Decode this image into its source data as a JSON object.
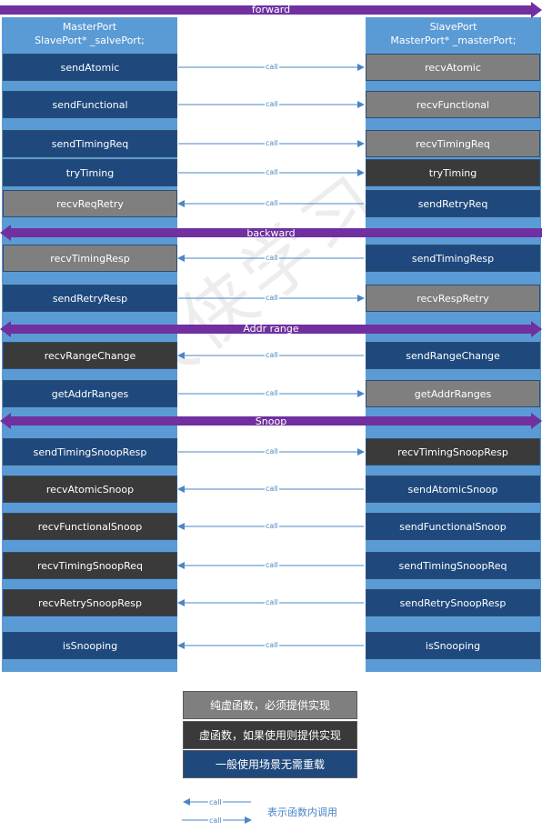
{
  "bands": {
    "forward": "forward",
    "backward": "backward",
    "addr_range": "Addr range",
    "snoop": "Snoop"
  },
  "left_header": [
    "MasterPort",
    "SlavePort* _salvePort;"
  ],
  "right_header": [
    "SlavePort",
    "MasterPort* _masterPort;"
  ],
  "call_label": "call",
  "rows": [
    {
      "left": "sendAtomic",
      "left_style": "navy",
      "right": "recvAtomic",
      "right_style": "gray",
      "direction": "right"
    },
    {
      "left": "sendFunctional",
      "left_style": "navy",
      "right": "recvFunctional",
      "right_style": "gray",
      "direction": "right"
    },
    {
      "left": "sendTimingReq",
      "left_style": "navy",
      "right": "recvTimingReq",
      "right_style": "gray",
      "direction": "right"
    },
    {
      "left": "tryTiming",
      "left_style": "navy",
      "right": "tryTiming",
      "right_style": "dark",
      "direction": "right"
    },
    {
      "left": "recvReqRetry",
      "left_style": "gray",
      "right": "sendRetryReq",
      "right_style": "navy",
      "direction": "left"
    },
    {
      "left": "recvTimingResp",
      "left_style": "gray",
      "right": "sendTimingResp",
      "right_style": "navy",
      "direction": "left"
    },
    {
      "left": "sendRetryResp",
      "left_style": "navy",
      "right": "recvRespRetry",
      "right_style": "gray",
      "direction": "right"
    },
    {
      "left": "recvRangeChange",
      "left_style": "dark",
      "right": "sendRangeChange",
      "right_style": "navy",
      "direction": "left"
    },
    {
      "left": "getAddrRanges",
      "left_style": "navy",
      "right": "getAddrRanges",
      "right_style": "gray",
      "direction": "right"
    },
    {
      "left": "sendTimingSnoopResp",
      "left_style": "navy",
      "right": "recvTimingSnoopResp",
      "right_style": "dark",
      "direction": "right"
    },
    {
      "left": "recvAtomicSnoop",
      "left_style": "dark",
      "right": "sendAtomicSnoop",
      "right_style": "navy",
      "direction": "left"
    },
    {
      "left": "recvFunctionalSnoop",
      "left_style": "dark",
      "right": "sendFunctionalSnoop",
      "right_style": "navy",
      "direction": "left"
    },
    {
      "left": "recvTimingSnoopReq",
      "left_style": "dark",
      "right": "sendTimingSnoopReq",
      "right_style": "navy",
      "direction": "left"
    },
    {
      "left": "recvRetrySnoopResp",
      "left_style": "dark",
      "right": "sendRetrySnoopResp",
      "right_style": "navy",
      "direction": "left"
    },
    {
      "left": "isSnooping",
      "left_style": "navy",
      "right": "isSnooping",
      "right_style": "navy",
      "direction": "left"
    }
  ],
  "legend": {
    "pure_virtual": "纯虚函数，必须提供实现",
    "virtual": "虚函数，如果使用则提供实现",
    "no_overload": "一般使用场景无需重载",
    "call_note": "表示函数内调用"
  },
  "watermark": "郭大侠学习",
  "colors": {
    "column_blue": "#5b9bd5",
    "navy": "#1f497d",
    "gray": "#7f7f7f",
    "dark": "#3a3a3a",
    "band_purple": "#7030a0",
    "arrow_blue": "#4a86c5"
  }
}
